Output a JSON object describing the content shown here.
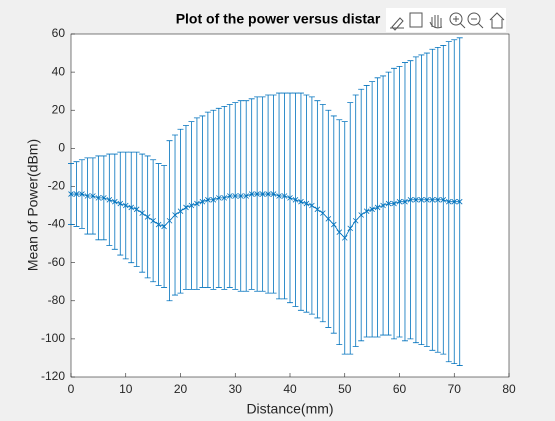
{
  "chart_data": {
    "type": "errorbar",
    "title": "Plot of the power versus distar",
    "xlabel": "Distance(mm)",
    "ylabel": "Mean of Power(dBm)",
    "color": "#0072bd",
    "x": [
      0,
      1,
      2,
      3,
      4,
      5,
      6,
      7,
      8,
      9,
      10,
      11,
      12,
      13,
      14,
      15,
      16,
      17,
      18,
      19,
      20,
      21,
      22,
      23,
      24,
      25,
      26,
      27,
      28,
      29,
      30,
      31,
      32,
      33,
      34,
      35,
      36,
      37,
      38,
      39,
      40,
      41,
      42,
      43,
      44,
      45,
      46,
      47,
      48,
      49,
      50,
      51,
      52,
      53,
      54,
      55,
      56,
      57,
      58,
      59,
      60,
      61,
      62,
      63,
      64,
      65,
      66,
      67,
      68,
      69,
      70,
      71
    ],
    "values": [
      -24,
      -24,
      -24,
      -25,
      -25,
      -26,
      -26,
      -27,
      -28,
      -29,
      -30,
      -31,
      -32,
      -34,
      -36,
      -38,
      -40,
      -41,
      -38,
      -35,
      -33,
      -31,
      -30,
      -29,
      -28,
      -27,
      -27,
      -26,
      -26,
      -25,
      -25,
      -25,
      -25,
      -24,
      -24,
      -24,
      -24,
      -24,
      -25,
      -25,
      -26,
      -27,
      -28,
      -29,
      -30,
      -32,
      -34,
      -37,
      -40,
      -44,
      -47,
      -42,
      -38,
      -35,
      -33,
      -32,
      -31,
      -30,
      -29,
      -29,
      -28,
      -28,
      -27,
      -27,
      -27,
      -27,
      -27,
      -27,
      -27,
      -28,
      -28,
      -28
    ],
    "errors": [
      16,
      17,
      18,
      20,
      20,
      22,
      22,
      24,
      25,
      27,
      28,
      29,
      30,
      31,
      32,
      32,
      32,
      32,
      42,
      42,
      43,
      43,
      44,
      45,
      45,
      46,
      47,
      47,
      48,
      48,
      49,
      50,
      50,
      50,
      51,
      51,
      52,
      52,
      54,
      54,
      55,
      56,
      57,
      57,
      57,
      57,
      57,
      57,
      57,
      59,
      61,
      66,
      66,
      66,
      66,
      67,
      68,
      68,
      69,
      71,
      71,
      73,
      73,
      75,
      76,
      77,
      79,
      80,
      81,
      84,
      85,
      86
    ],
    "xlim": [
      0,
      80
    ],
    "xticks": [
      0,
      10,
      20,
      30,
      40,
      50,
      60,
      70,
      80
    ],
    "ylim": [
      -120,
      60
    ],
    "yticks": [
      -120,
      -100,
      -80,
      -60,
      -40,
      -20,
      0,
      20,
      40,
      60
    ]
  }
}
